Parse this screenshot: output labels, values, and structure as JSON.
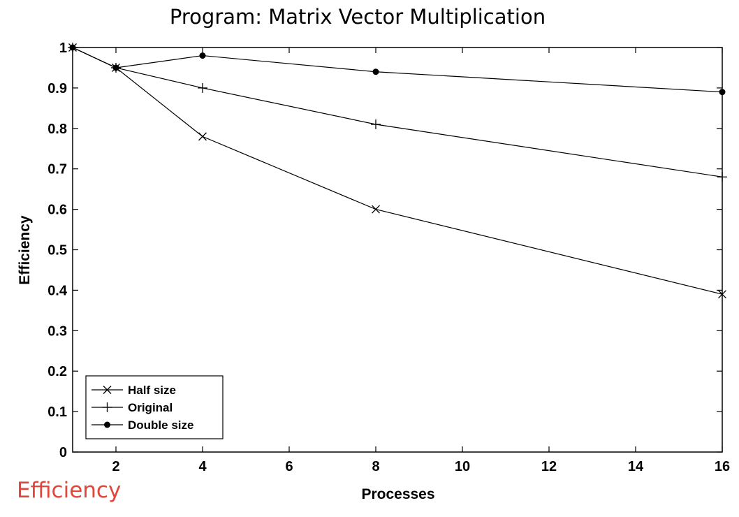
{
  "caption": {
    "text": "Efficiency",
    "color": "#e0463a"
  },
  "chart_data": {
    "type": "line",
    "title": "Program: Matrix Vector Multiplication",
    "xlabel": "Processes",
    "ylabel": "Efficiency",
    "xlim": [
      1,
      16
    ],
    "ylim": [
      0,
      1
    ],
    "xticks": [
      2,
      4,
      6,
      8,
      10,
      12,
      14,
      16
    ],
    "yticks": [
      0,
      0.1,
      0.2,
      0.3,
      0.4,
      0.5,
      0.6,
      0.7,
      0.8,
      0.9,
      1
    ],
    "ytick_labels": [
      "0",
      "0.1",
      "0.2",
      "0.3",
      "0.4",
      "0.5",
      "0.6",
      "0.7",
      "0.8",
      "0.9",
      "1"
    ],
    "grid": false,
    "legend_position": "bottom-left",
    "series": [
      {
        "name": "Half size",
        "marker": "x",
        "x": [
          1,
          2,
          4,
          8,
          16
        ],
        "y": [
          1.0,
          0.95,
          0.78,
          0.6,
          0.39
        ]
      },
      {
        "name": "Original",
        "marker": "plus",
        "x": [
          1,
          2,
          4,
          8,
          16
        ],
        "y": [
          1.0,
          0.95,
          0.9,
          0.81,
          0.68
        ]
      },
      {
        "name": "Double size",
        "marker": "dot",
        "x": [
          1,
          2,
          4,
          8,
          16
        ],
        "y": [
          1.0,
          0.95,
          0.98,
          0.94,
          0.89
        ]
      }
    ]
  }
}
